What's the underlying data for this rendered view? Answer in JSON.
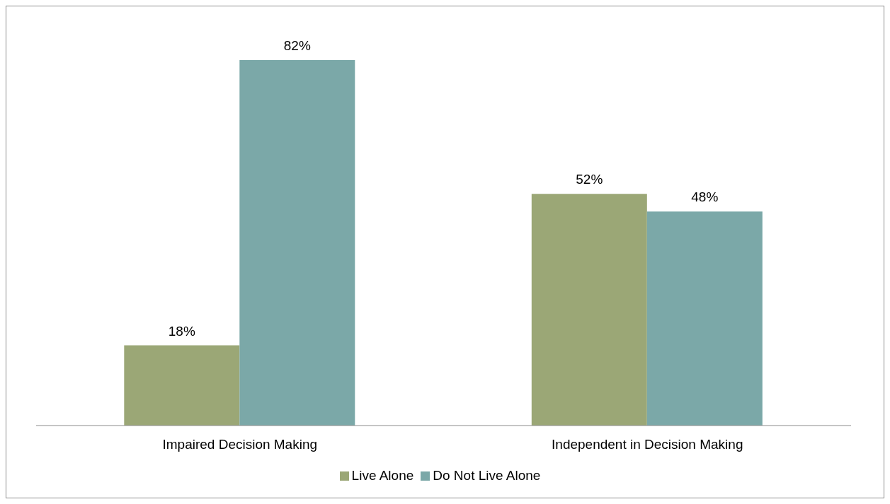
{
  "chart_data": {
    "type": "bar",
    "categories": [
      "Impaired Decision Making",
      "Independent in Decision Making"
    ],
    "series": [
      {
        "name": "Live Alone",
        "color": "#9ba776",
        "values": [
          18,
          52
        ],
        "value_labels": [
          "18%",
          "52%"
        ]
      },
      {
        "name": "Do Not Live Alone",
        "color": "#7ba8a8",
        "values": [
          82,
          48
        ],
        "value_labels": [
          "82%",
          "48%"
        ]
      }
    ],
    "legend": "bottom"
  }
}
